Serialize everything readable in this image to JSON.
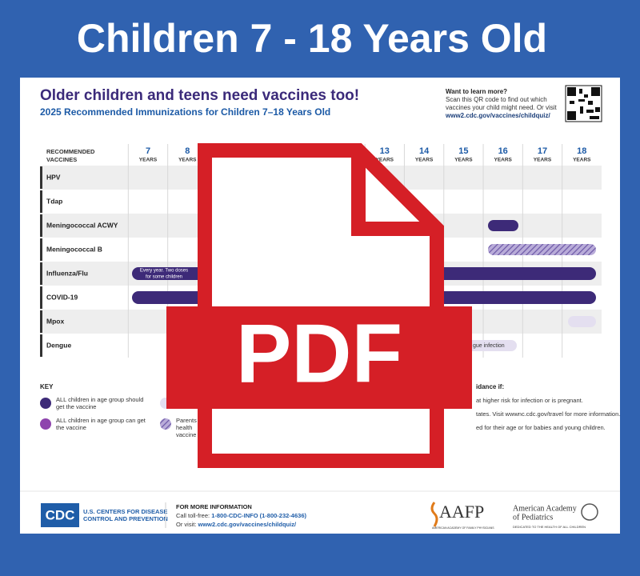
{
  "header": {
    "title": "Children 7 - 18 Years Old"
  },
  "document": {
    "heading": "Older children and teens need vaccines too!",
    "subheading": "2025 Recommended Immunizations for Children 7–18 Years Old",
    "learn_more": {
      "title": "Want to learn more?",
      "lines": [
        "Scan this QR code to find out which",
        "vaccines your child might need. Or visit",
        "www2.cdc.gov/vaccines/childquiz/"
      ]
    },
    "table": {
      "header_label": [
        "RECOMMENDED",
        "VACCINES"
      ],
      "ages": [
        "7",
        "8",
        null,
        null,
        null,
        null,
        "13",
        "14",
        "15",
        "16",
        "17",
        "18"
      ],
      "age_unit": "YEARS",
      "rows": [
        "HPV",
        "Tdap",
        "Meningococcal ACWY",
        "Meningococcal B",
        "Influenza/Flu",
        "COVID-19",
        "Mpox",
        "Dengue"
      ],
      "bar_labels": {
        "flu": [
          "Every year. Two doses",
          "for some children"
        ],
        "dengue": "gue infection"
      }
    },
    "key": {
      "title": "KEY",
      "items": [
        [
          "ALL children in age group should",
          "get the vaccine"
        ],
        [
          "ALL children in age group can get",
          "the vaccine"
        ],
        [
          "Parents",
          "health",
          "vaccine"
        ]
      ]
    },
    "guidance": {
      "title": "idance if:",
      "lines": [
        "at higher risk for infection or is pregnant.",
        "tates. Visit wwwnc.cdc.gov/travel for more information.",
        "ed for their age or for babies and young children."
      ]
    },
    "footer": {
      "cdc_logo": "CDC",
      "cdc_name": [
        "U.S. CENTERS FOR DISEASE",
        "CONTROL AND PREVENTION"
      ],
      "info_title": "FOR MORE INFORMATION",
      "phone_prefix": "Call toll-free: ",
      "phone": "1-800-CDC-INFO (1-800-232-4636)",
      "visit_prefix": "Or visit: ",
      "visit_url": "www2.cdc.gov/vaccines/childquiz/",
      "aafp": "AAFP",
      "aafp_name": "AMERICAN ACADEMY OF FAMILY PHYSICIANS",
      "aap": [
        "American Academy",
        "of Pediatrics"
      ],
      "aap_tagline": "DEDICATED TO THE HEALTH OF ALL CHILDREN"
    }
  },
  "overlay": {
    "label": "PDF"
  }
}
